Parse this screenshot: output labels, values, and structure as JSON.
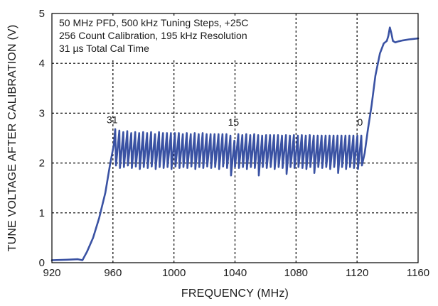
{
  "chart_data": {
    "type": "line",
    "xlabel": "FREQUENCY (MHz)",
    "ylabel": "TUNE VOLTAGE AFTER CALIBRATION (V)",
    "xlim": [
      920,
      1160
    ],
    "ylim": [
      0,
      5
    ],
    "x_ticks": [
      "920",
      "960",
      "1000",
      "1040",
      "1080",
      "1120",
      "1160"
    ],
    "y_ticks": [
      "0",
      "1",
      "2",
      "3",
      "4",
      "5"
    ],
    "x_tick_values": [
      920,
      960,
      1000,
      1040,
      1080,
      1120,
      1160
    ],
    "y_tick_values": [
      0,
      1,
      2,
      3,
      4,
      5
    ],
    "grid": true,
    "annotation_lines": [
      "50 MHz PFD, 500 kHz Tuning Steps, +25C",
      "256 Count Calibration, 195 kHz Resolution",
      "31 µs Total Cal Time"
    ],
    "labels": [
      {
        "text": "31",
        "x": 959.5,
        "y": 2.8
      },
      {
        "text": "15",
        "x": 1039,
        "y": 2.75
      },
      {
        "text": "0",
        "x": 1122,
        "y": 2.75
      }
    ],
    "series": [
      {
        "color": "#3a52a3",
        "points": [
          [
            920,
            0.05
          ],
          [
            930,
            0.06
          ],
          [
            937,
            0.07
          ],
          [
            940,
            0.05
          ],
          [
            943,
            0.22
          ],
          [
            947,
            0.5
          ],
          [
            951,
            0.9
          ],
          [
            955,
            1.4
          ],
          [
            958,
            1.95
          ],
          [
            960.5,
            2.35
          ],
          [
            961.5,
            2.68
          ],
          [
            962,
            1.95
          ],
          [
            964.2,
            2.65
          ],
          [
            964.6,
            1.9
          ],
          [
            966.8,
            2.62
          ],
          [
            967.2,
            1.92
          ],
          [
            969.4,
            2.64
          ],
          [
            969.8,
            1.95
          ],
          [
            972,
            2.6
          ],
          [
            972.4,
            1.9
          ],
          [
            974.6,
            2.62
          ],
          [
            975,
            1.93
          ],
          [
            977.2,
            2.6
          ],
          [
            977.6,
            1.88
          ],
          [
            979.8,
            2.62
          ],
          [
            980.2,
            1.92
          ],
          [
            982.4,
            2.6
          ],
          [
            982.8,
            1.9
          ],
          [
            985,
            2.62
          ],
          [
            985.4,
            1.93
          ],
          [
            987.6,
            2.58
          ],
          [
            988,
            1.88
          ],
          [
            990.2,
            2.62
          ],
          [
            990.6,
            1.92
          ],
          [
            992.8,
            2.6
          ],
          [
            993.2,
            1.9
          ],
          [
            995.4,
            2.6
          ],
          [
            995.8,
            1.92
          ],
          [
            998,
            2.6
          ],
          [
            998.4,
            1.88
          ],
          [
            1000.6,
            2.6
          ],
          [
            1001,
            1.93
          ],
          [
            1003.2,
            2.6
          ],
          [
            1003.6,
            1.9
          ],
          [
            1005.8,
            2.58
          ],
          [
            1006.2,
            1.92
          ],
          [
            1008.4,
            2.6
          ],
          [
            1008.8,
            1.9
          ],
          [
            1011,
            2.58
          ],
          [
            1011.4,
            1.93
          ],
          [
            1013.6,
            2.6
          ],
          [
            1014,
            1.88
          ],
          [
            1016.2,
            2.58
          ],
          [
            1016.6,
            1.92
          ],
          [
            1018.8,
            2.6
          ],
          [
            1019.2,
            1.9
          ],
          [
            1021.4,
            2.58
          ],
          [
            1021.8,
            1.93
          ],
          [
            1024,
            2.58
          ],
          [
            1024.4,
            1.9
          ],
          [
            1026.6,
            2.58
          ],
          [
            1027,
            1.92
          ],
          [
            1029.2,
            2.58
          ],
          [
            1029.6,
            1.88
          ],
          [
            1031.8,
            2.58
          ],
          [
            1032.2,
            1.93
          ],
          [
            1034.4,
            2.58
          ],
          [
            1034.8,
            1.9
          ],
          [
            1037,
            2.55
          ],
          [
            1037.4,
            1.75
          ],
          [
            1039.6,
            2.45
          ],
          [
            1040,
            1.92
          ],
          [
            1042.2,
            2.58
          ],
          [
            1042.6,
            1.9
          ],
          [
            1044.8,
            2.56
          ],
          [
            1045.2,
            1.92
          ],
          [
            1047.4,
            2.58
          ],
          [
            1047.8,
            1.88
          ],
          [
            1050,
            2.56
          ],
          [
            1050.4,
            1.92
          ],
          [
            1052.6,
            2.58
          ],
          [
            1053,
            1.9
          ],
          [
            1055.2,
            2.56
          ],
          [
            1055.6,
            1.75
          ],
          [
            1057.8,
            2.55
          ],
          [
            1058.2,
            1.92
          ],
          [
            1060.4,
            2.56
          ],
          [
            1060.8,
            1.9
          ],
          [
            1063,
            2.56
          ],
          [
            1063.4,
            1.92
          ],
          [
            1065.6,
            2.56
          ],
          [
            1066,
            1.88
          ],
          [
            1068.2,
            2.56
          ],
          [
            1068.6,
            1.92
          ],
          [
            1070.8,
            2.55
          ],
          [
            1071.2,
            1.9
          ],
          [
            1073.4,
            2.56
          ],
          [
            1073.8,
            1.78
          ],
          [
            1076,
            2.55
          ],
          [
            1076.4,
            1.92
          ],
          [
            1078.6,
            2.56
          ],
          [
            1079,
            1.9
          ],
          [
            1081.2,
            2.55
          ],
          [
            1081.6,
            1.92
          ],
          [
            1083.8,
            2.56
          ],
          [
            1084.2,
            1.9
          ],
          [
            1086.4,
            2.55
          ],
          [
            1086.8,
            1.88
          ],
          [
            1089,
            2.56
          ],
          [
            1089.4,
            1.92
          ],
          [
            1091.6,
            2.55
          ],
          [
            1092,
            1.8
          ],
          [
            1094.2,
            2.55
          ],
          [
            1094.6,
            1.92
          ],
          [
            1096.8,
            2.55
          ],
          [
            1097.2,
            1.9
          ],
          [
            1099.4,
            2.55
          ],
          [
            1099.8,
            1.92
          ],
          [
            1102,
            2.55
          ],
          [
            1102.4,
            1.88
          ],
          [
            1104.6,
            2.55
          ],
          [
            1105,
            1.92
          ],
          [
            1107.2,
            2.55
          ],
          [
            1107.6,
            1.8
          ],
          [
            1109.8,
            2.55
          ],
          [
            1110.2,
            1.92
          ],
          [
            1112.4,
            2.55
          ],
          [
            1112.8,
            1.88
          ],
          [
            1115,
            2.55
          ],
          [
            1115.4,
            1.92
          ],
          [
            1117.6,
            2.55
          ],
          [
            1118,
            1.9
          ],
          [
            1120.2,
            2.55
          ],
          [
            1120.6,
            1.88
          ],
          [
            1122.8,
            2.55
          ],
          [
            1123.2,
            1.95
          ],
          [
            1125,
            2.2
          ],
          [
            1127,
            2.65
          ],
          [
            1129.5,
            3.15
          ],
          [
            1132,
            3.75
          ],
          [
            1135,
            4.2
          ],
          [
            1137.5,
            4.4
          ],
          [
            1139.5,
            4.45
          ],
          [
            1140.5,
            4.55
          ],
          [
            1141.5,
            4.72
          ],
          [
            1142.5,
            4.6
          ],
          [
            1143.5,
            4.45
          ],
          [
            1145,
            4.42
          ],
          [
            1147,
            4.44
          ],
          [
            1150,
            4.46
          ],
          [
            1154,
            4.48
          ],
          [
            1157,
            4.49
          ],
          [
            1160,
            4.5
          ]
        ]
      }
    ]
  }
}
